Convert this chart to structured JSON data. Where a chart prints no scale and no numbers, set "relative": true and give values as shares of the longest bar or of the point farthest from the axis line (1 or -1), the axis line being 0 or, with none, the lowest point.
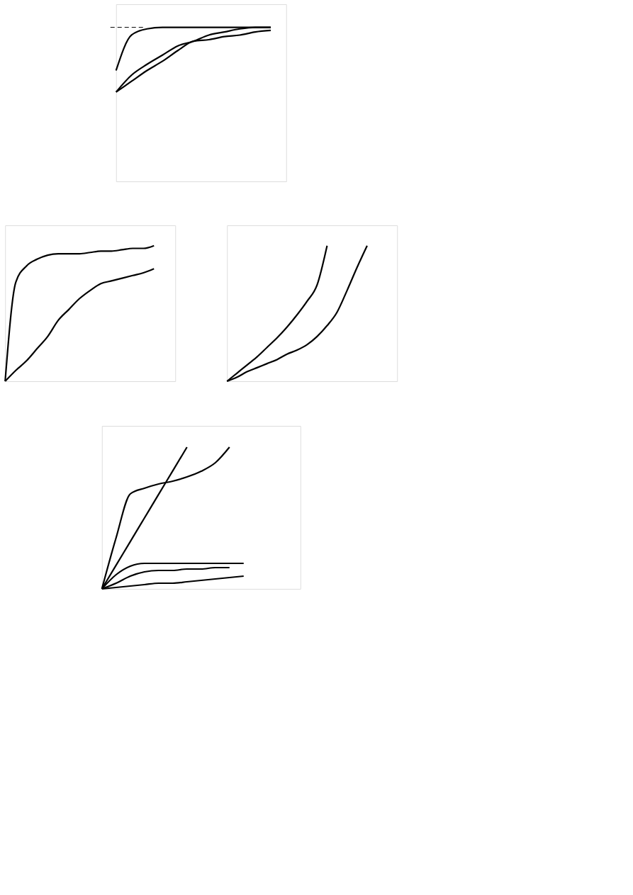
{
  "chart_data": [
    {
      "type": "line",
      "relative": true,
      "categories": [
        null,
        null,
        null,
        null,
        null,
        null,
        null,
        null,
        null,
        null,
        null,
        null
      ],
      "series": [
        {
          "color": "#000000",
          "values": [
            0.72,
            0.95,
            0.99,
            1.0,
            1.0,
            1.0,
            1.0,
            1.0,
            1.0,
            1.0,
            1.0,
            null
          ]
        },
        {
          "color": "#000000",
          "values": [
            0.58,
            0.69,
            0.76,
            0.82,
            0.88,
            0.91,
            0.95,
            0.97,
            0.99,
            1.0,
            1.0,
            null
          ]
        },
        {
          "color": "#000000",
          "values": [
            0.58,
            0.65,
            0.72,
            0.78,
            0.85,
            0.91,
            0.92,
            0.94,
            0.95,
            0.97,
            0.98,
            null
          ]
        }
      ],
      "ref_lines": [
        {
          "axis": "y",
          "value": 1.0,
          "color": "#000000",
          "line_style": "dashed"
        }
      ]
    },
    {
      "type": "line",
      "relative": true,
      "categories": [
        null,
        null,
        null,
        null,
        null,
        null,
        null,
        null,
        null,
        null,
        null,
        null,
        null,
        null,
        null,
        null,
        null
      ],
      "series": [
        {
          "color": "#000000",
          "values": [
            0,
            0.73,
            0.85,
            0.9,
            0.93,
            0.94,
            0.94,
            0.94,
            0.95,
            0.96,
            0.96,
            0.97,
            0.98,
            0.98,
            1.0,
            null,
            null
          ]
        },
        {
          "color": "#000000",
          "values": [
            0,
            0.08,
            0.15,
            0.24,
            0.33,
            0.45,
            0.53,
            0.61,
            0.67,
            0.72,
            0.74,
            0.76,
            0.78,
            0.8,
            0.83,
            null,
            null
          ]
        }
      ]
    },
    {
      "type": "line",
      "relative": true,
      "categories": [
        null,
        null,
        null,
        null,
        null,
        null,
        null,
        null,
        null,
        null,
        null,
        null,
        null,
        null,
        null,
        null,
        null,
        null
      ],
      "series": [
        {
          "color": "#000000",
          "values": [
            0,
            0.06,
            0.12,
            0.18,
            0.25,
            0.32,
            0.4,
            0.49,
            0.59,
            0.71,
            1.0,
            null,
            null,
            null,
            null,
            null,
            null,
            null
          ]
        },
        {
          "color": "#000000",
          "values": [
            0,
            0.03,
            0.07,
            0.1,
            0.13,
            0.16,
            0.2,
            0.23,
            0.27,
            0.33,
            0.41,
            0.51,
            0.67,
            0.84,
            1.0,
            null,
            null,
            null
          ]
        }
      ]
    },
    {
      "type": "line",
      "relative": true,
      "categories": [
        null,
        null,
        null,
        null,
        null,
        null,
        null,
        null,
        null,
        null,
        null,
        null,
        null,
        null,
        null
      ],
      "series": [
        {
          "color": "#000000",
          "values": [
            0,
            0.167,
            0.333,
            0.5,
            0.667,
            0.833,
            1.0,
            null,
            null,
            null,
            null,
            null,
            null,
            null,
            null
          ]
        },
        {
          "color": "#000000",
          "values": [
            0,
            0.36,
            0.67,
            0.71,
            0.74,
            0.76,
            0.79,
            0.83,
            0.89,
            1.0,
            null,
            null,
            null,
            null,
            null
          ]
        },
        {
          "color": "#000000",
          "values": [
            0,
            0.1,
            0.16,
            0.18,
            0.18,
            0.18,
            0.18,
            0.18,
            0.18,
            0.18,
            0.18,
            null,
            null,
            null,
            null
          ]
        },
        {
          "color": "#000000",
          "values": [
            0,
            0.04,
            0.09,
            0.12,
            0.13,
            0.13,
            0.14,
            0.14,
            0.15,
            0.15,
            null,
            null,
            null,
            null,
            null
          ]
        },
        {
          "color": "#000000",
          "values": [
            0,
            0.01,
            0.02,
            0.03,
            0.04,
            0.04,
            0.05,
            0.06,
            0.07,
            0.08,
            0.09,
            null,
            null,
            null,
            null
          ]
        }
      ]
    }
  ]
}
